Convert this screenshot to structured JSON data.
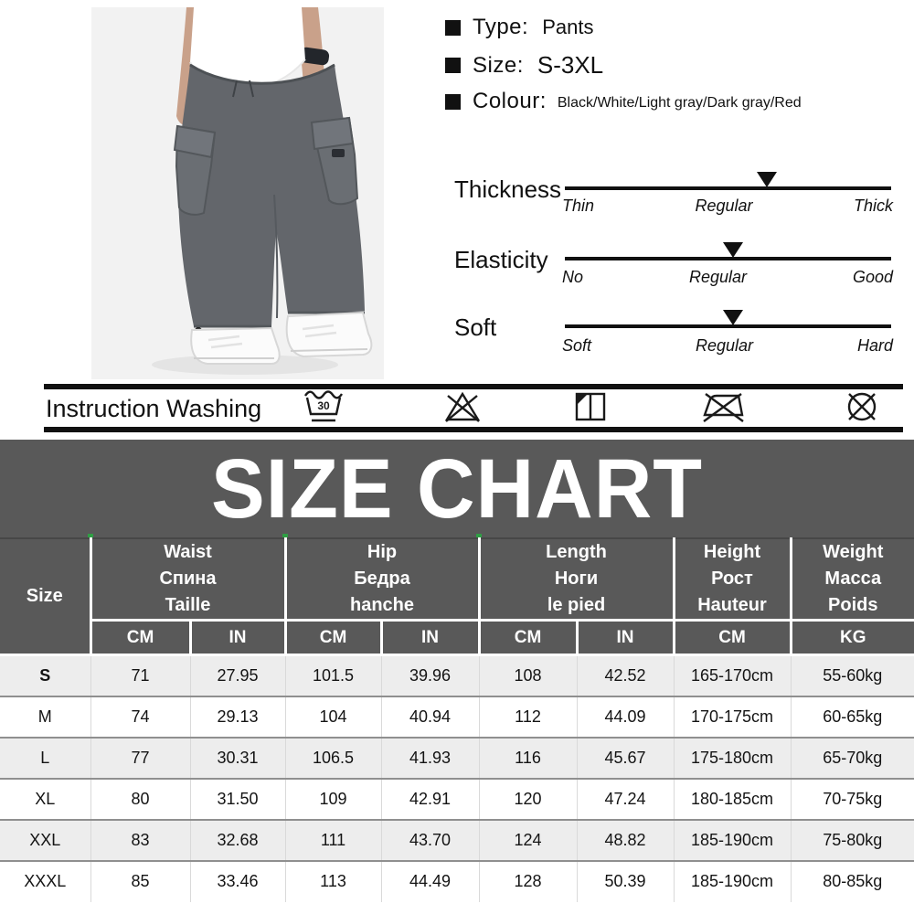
{
  "product": {
    "attributes": [
      {
        "label": "Type:",
        "value": "Pants"
      },
      {
        "label": "Size:",
        "value": "S-3XL"
      },
      {
        "label": "Colour:",
        "value": "Black/White/Light gray/Dark gray/Red"
      }
    ],
    "sliders": [
      {
        "name": "Thickness",
        "scale": [
          "Thin",
          "Regular",
          "Thick"
        ],
        "marker_pct": 62
      },
      {
        "name": "Elasticity",
        "scale": [
          "No",
          "Regular",
          "Good"
        ],
        "marker_pct": 51.5
      },
      {
        "name": "Soft",
        "scale": [
          "Soft",
          "Regular",
          "Hard"
        ],
        "marker_pct": 51.5
      }
    ]
  },
  "washing": {
    "title": "Instruction Washing",
    "wash_temp": "30",
    "icons": [
      "wash-30",
      "do-not-bleach",
      "hang-dry-in-shade",
      "do-not-iron",
      "do-not-dry-clean"
    ]
  },
  "size_chart": {
    "title": "SIZE CHART",
    "size_header": "Size",
    "groups": [
      {
        "title": "Waist\nСпина\nTaille"
      },
      {
        "title": "Hip\nБедра\nhanche"
      },
      {
        "title": "Length\nНоги\nle pied"
      },
      {
        "title": "Height\nРост\nHauteur"
      },
      {
        "title": "Weight\nМасса\nPoids"
      }
    ],
    "units": [
      "CM",
      "IN",
      "CM",
      "IN",
      "CM",
      "IN",
      "CM",
      "KG"
    ],
    "rows": [
      [
        "S",
        "71",
        "27.95",
        "101.5",
        "39.96",
        "108",
        "42.52",
        "165-170cm",
        "55-60kg"
      ],
      [
        "M",
        "74",
        "29.13",
        "104",
        "40.94",
        "112",
        "44.09",
        "170-175cm",
        "60-65kg"
      ],
      [
        "L",
        "77",
        "30.31",
        "106.5",
        "41.93",
        "116",
        "45.67",
        "175-180cm",
        "65-70kg"
      ],
      [
        "XL",
        "80",
        "31.50",
        "109",
        "42.91",
        "120",
        "47.24",
        "180-185cm",
        "70-75kg"
      ],
      [
        "XXL",
        "83",
        "32.68",
        "111",
        "43.70",
        "124",
        "48.82",
        "185-190cm",
        "75-80kg"
      ],
      [
        "XXXL",
        "85",
        "33.46",
        "113",
        "44.49",
        "128",
        "50.39",
        "185-190cm",
        "80-85kg"
      ]
    ]
  },
  "colors": {
    "header_bg": "#595959",
    "row_alt": "#ededed",
    "bar_black": "#111111",
    "accent_green": "#2f9e44",
    "photo_bg": "#f2f2f2",
    "pants_gray": "#63666b"
  }
}
